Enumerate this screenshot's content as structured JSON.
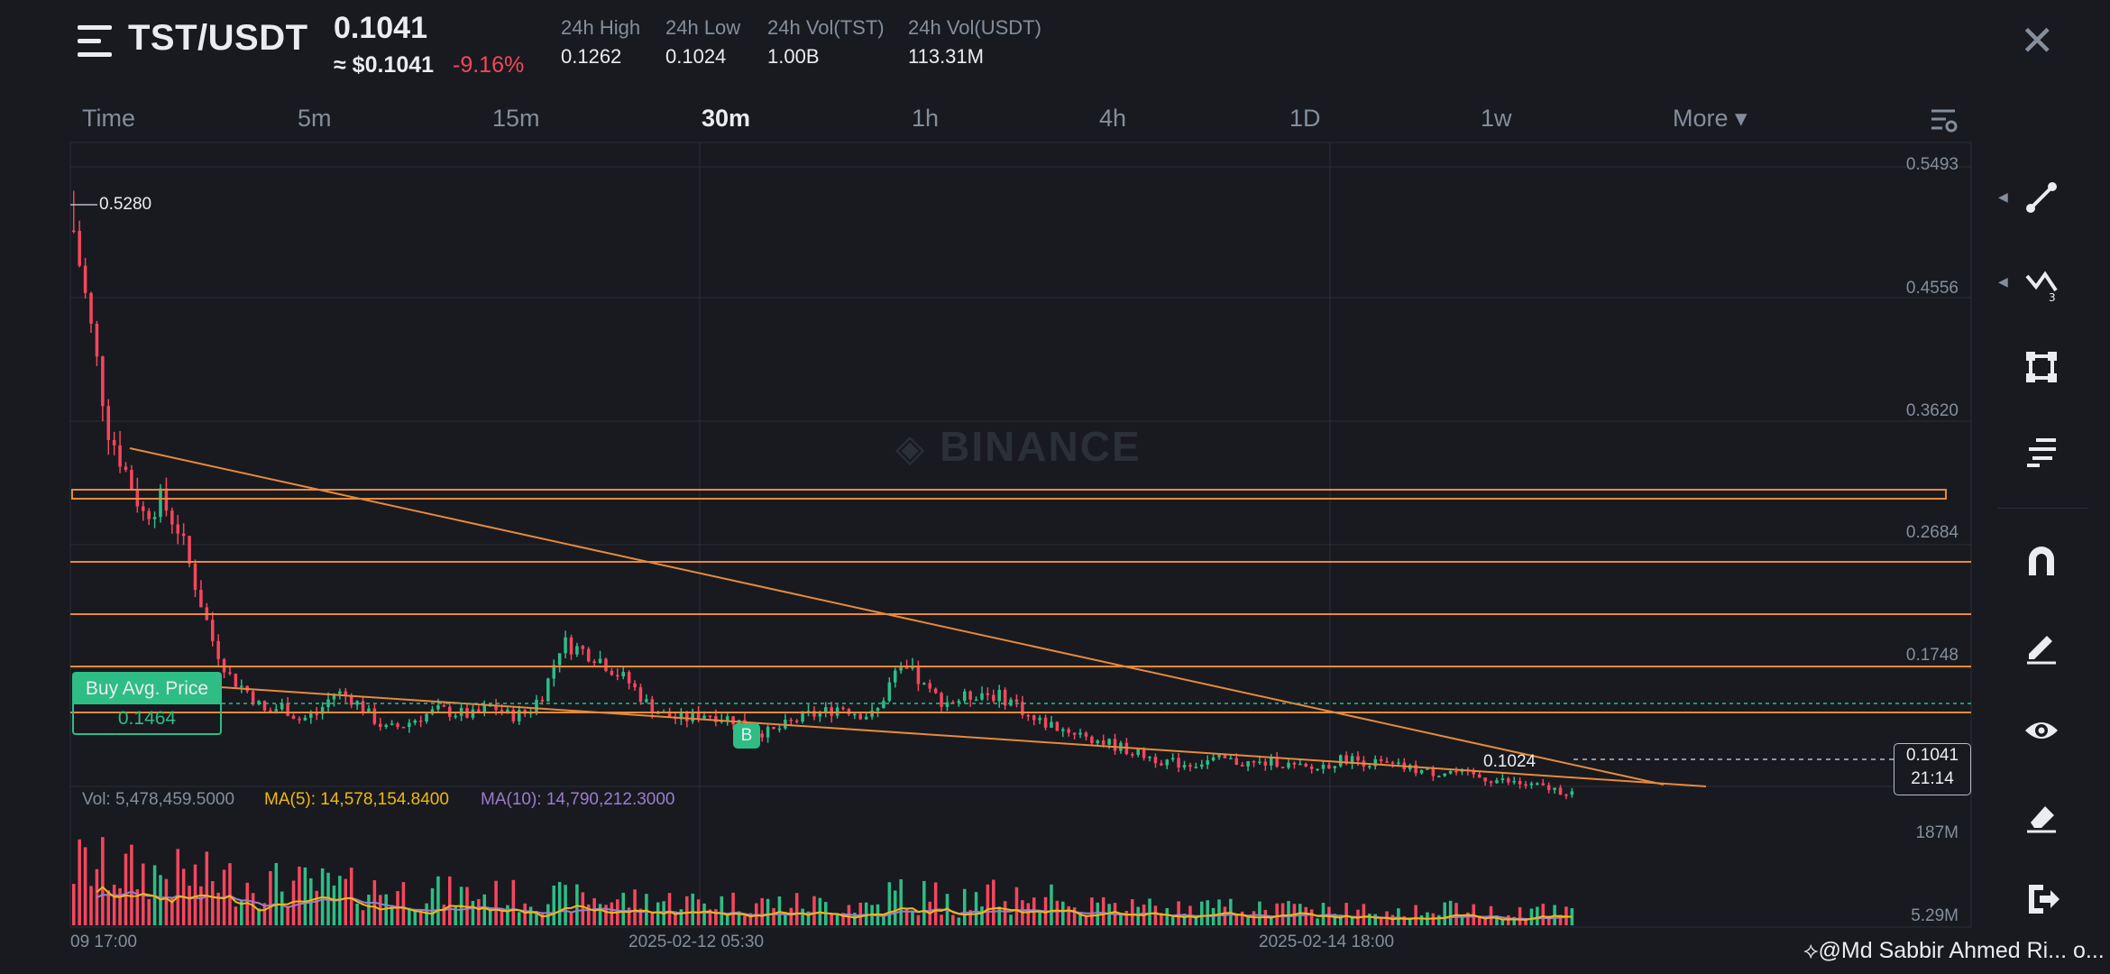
{
  "header": {
    "pair": "TST/USDT",
    "last_price": "0.1041",
    "usd_price": "≈ $0.1041",
    "change": "-9.16%",
    "stats": [
      {
        "label": "24h High",
        "value": "0.1262"
      },
      {
        "label": "24h Low",
        "value": "0.1024"
      },
      {
        "label": "24h Vol(TST)",
        "value": "1.00B"
      },
      {
        "label": "24h Vol(USDT)",
        "value": "113.31M"
      }
    ],
    "close_glyph": "✕"
  },
  "timeframes": {
    "items": [
      "Time",
      "5m",
      "15m",
      "30m",
      "1h",
      "4h",
      "1D",
      "1w",
      "More ▾"
    ],
    "active": "30m"
  },
  "chart_data": {
    "type": "candlestick",
    "watermark": "BINANCE",
    "y_ticks": [
      "0.5493",
      "0.4556",
      "0.3620",
      "0.2684",
      "0.1748"
    ],
    "ylim": [
      0.1,
      0.5493
    ],
    "x_ticks": [
      "09 17:00",
      "2025-02-12 05:30",
      "2025-02-14 18:00"
    ],
    "high_marker": "0.5280",
    "low_marker": "0.1024",
    "last_price": "0.1041",
    "countdown": "21:14",
    "buy_avg_label": "Buy Avg. Price",
    "buy_avg_value": "0.1464",
    "buy_marker": "B",
    "horizontal_levels": [
      0.31,
      0.265,
      0.22,
      0.176,
      0.15
    ],
    "close_series": [
      0.5,
      0.43,
      0.36,
      0.33,
      0.3,
      0.31,
      0.29,
      0.25,
      0.21,
      0.185,
      0.175,
      0.16,
      0.165,
      0.155,
      0.16,
      0.175,
      0.17,
      0.158,
      0.148,
      0.152,
      0.158,
      0.162,
      0.16,
      0.158,
      0.165,
      0.158,
      0.16,
      0.175,
      0.21,
      0.205,
      0.2,
      0.19,
      0.18,
      0.165,
      0.158,
      0.155,
      0.16,
      0.158,
      0.155,
      0.148,
      0.146,
      0.152,
      0.158,
      0.16,
      0.165,
      0.16,
      0.158,
      0.185,
      0.19,
      0.175,
      0.168,
      0.17,
      0.175,
      0.172,
      0.168,
      0.155,
      0.152,
      0.148,
      0.145,
      0.14,
      0.136,
      0.132,
      0.128,
      0.125,
      0.124,
      0.126,
      0.127,
      0.125,
      0.124,
      0.126,
      0.122,
      0.12,
      0.124,
      0.128,
      0.126,
      0.124,
      0.122,
      0.12,
      0.118,
      0.119,
      0.116,
      0.114,
      0.112,
      0.11,
      0.108,
      0.106,
      0.1041
    ],
    "volume_ticks": [
      "187M",
      "5.29M"
    ],
    "indicators": {
      "vol": "Vol: 5,478,459.5000",
      "ma5": "MA(5): 14,578,154.8400",
      "ma10": "MA(10): 14,790,212.3000"
    },
    "colors": {
      "up": "#2ebd85",
      "down": "#f6465d",
      "lines": "#e88a3a",
      "ma5": "#f0b90b",
      "ma10": "#9c7ccc"
    }
  },
  "sidebar": {
    "tools": [
      "trend-line-icon",
      "multi-line-icon",
      "shape-icon",
      "fib-icon",
      "magnet-icon",
      "pencil-icon",
      "eye-icon",
      "eraser-icon",
      "exit-icon"
    ]
  },
  "footer": {
    "credit": "@Md Sabbir Ahmed Ri... o..."
  }
}
